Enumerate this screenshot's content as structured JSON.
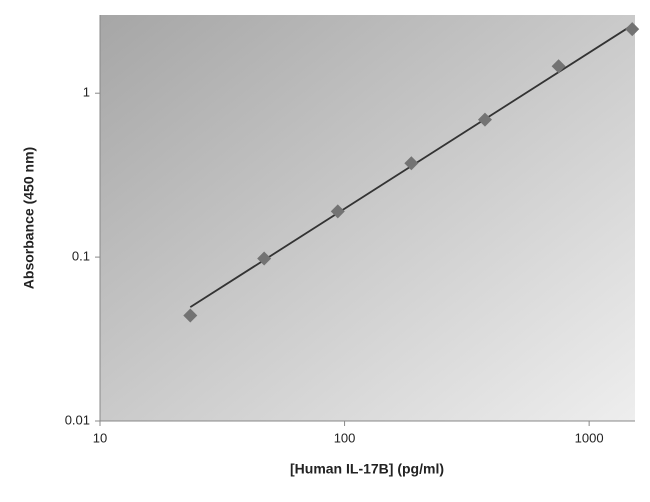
{
  "chart_data": {
    "type": "scatter",
    "x_label": "[Human IL-17B] (pg/ml)",
    "y_label": "Absorbance (450 nm)",
    "x": [
      23.4,
      46.9,
      93.8,
      187.5,
      375,
      750,
      1500
    ],
    "series": [
      {
        "color": "#737373",
        "values": [
          0.044,
          0.098,
          0.19,
          0.374,
          0.69,
          1.46,
          2.46
        ]
      }
    ],
    "trendline": {
      "color": "#333333",
      "x": [
        23.4,
        1500
      ],
      "y": [
        0.0495,
        2.6
      ]
    },
    "xlim": [
      10,
      1540
    ],
    "ylim": [
      0.01,
      3
    ],
    "xticks": [
      10,
      100,
      1000
    ],
    "yticks": [
      0.01,
      0.1,
      1
    ],
    "xscale": "log",
    "yscale": "log"
  }
}
